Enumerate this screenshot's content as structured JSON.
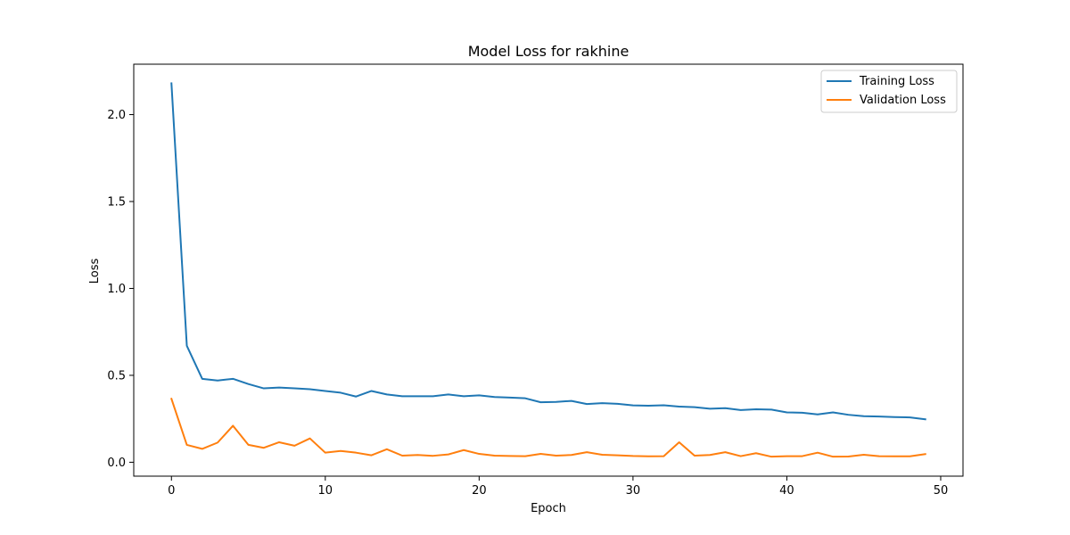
{
  "chart_data": {
    "type": "line",
    "title": "Model Loss for rakhine",
    "xlabel": "Epoch",
    "ylabel": "Loss",
    "xlim": [
      -2.45,
      51.45
    ],
    "ylim": [
      -0.08,
      2.29
    ],
    "xticks": [
      0,
      10,
      20,
      30,
      40,
      50
    ],
    "yticks": [
      0.0,
      0.5,
      1.0,
      1.5,
      2.0
    ],
    "ytick_labels": [
      "0.0",
      "0.5",
      "1.0",
      "1.5",
      "2.0"
    ],
    "legend_position": "top-right",
    "grid": false,
    "x": [
      0,
      1,
      2,
      3,
      4,
      5,
      6,
      7,
      8,
      9,
      10,
      11,
      12,
      13,
      14,
      15,
      16,
      17,
      18,
      19,
      20,
      21,
      22,
      23,
      24,
      25,
      26,
      27,
      28,
      29,
      30,
      31,
      32,
      33,
      34,
      35,
      36,
      37,
      38,
      39,
      40,
      41,
      42,
      43,
      44,
      45,
      46,
      47,
      48,
      49
    ],
    "series": [
      {
        "name": "Training Loss",
        "color": "#1f77b4",
        "values": [
          2.18,
          0.67,
          0.48,
          0.47,
          0.48,
          0.45,
          0.425,
          0.43,
          0.425,
          0.42,
          0.41,
          0.4,
          0.378,
          0.41,
          0.39,
          0.38,
          0.38,
          0.38,
          0.39,
          0.38,
          0.385,
          0.375,
          0.372,
          0.368,
          0.345,
          0.347,
          0.353,
          0.335,
          0.34,
          0.336,
          0.327,
          0.325,
          0.328,
          0.32,
          0.317,
          0.308,
          0.311,
          0.3,
          0.305,
          0.303,
          0.287,
          0.285,
          0.275,
          0.287,
          0.273,
          0.265,
          0.263,
          0.26,
          0.258,
          0.247
        ]
      },
      {
        "name": "Validation Loss",
        "color": "#ff7f0e",
        "values": [
          0.365,
          0.1,
          0.077,
          0.113,
          0.21,
          0.1,
          0.083,
          0.115,
          0.095,
          0.137,
          0.055,
          0.065,
          0.055,
          0.04,
          0.075,
          0.038,
          0.042,
          0.037,
          0.045,
          0.07,
          0.048,
          0.038,
          0.036,
          0.035,
          0.048,
          0.038,
          0.042,
          0.058,
          0.043,
          0.04,
          0.036,
          0.034,
          0.035,
          0.115,
          0.038,
          0.042,
          0.058,
          0.035,
          0.052,
          0.032,
          0.035,
          0.035,
          0.055,
          0.032,
          0.033,
          0.043,
          0.035,
          0.034,
          0.034,
          0.047
        ]
      }
    ]
  }
}
